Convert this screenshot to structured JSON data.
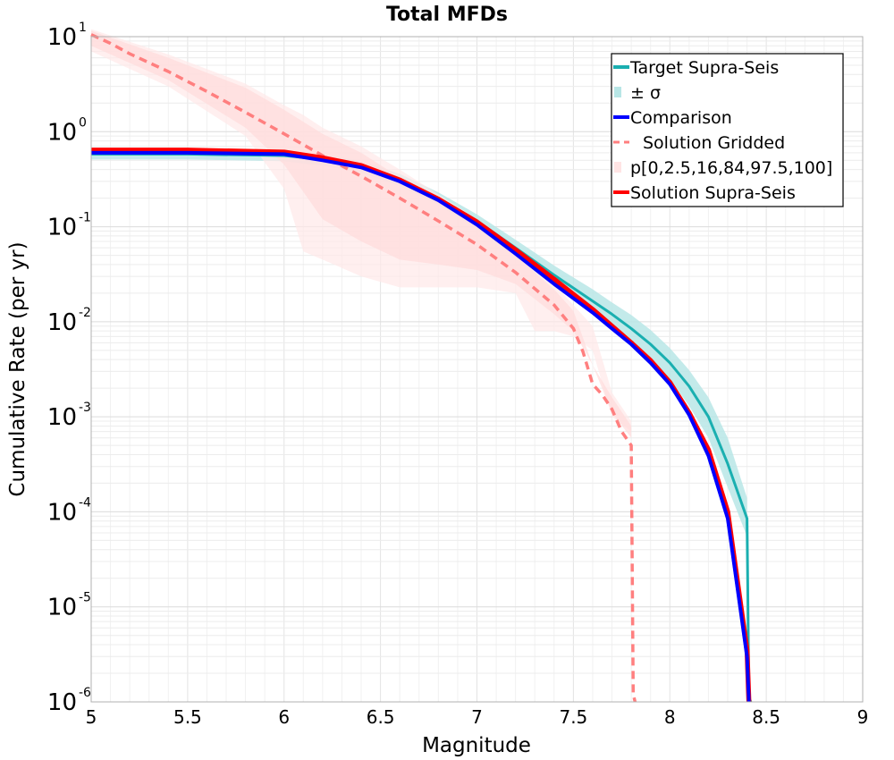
{
  "chart_data": {
    "type": "line",
    "title": "Total MFDs",
    "xlabel": "Magnitude",
    "ylabel": "Cumulative Rate (per yr)",
    "xlim": [
      5,
      9
    ],
    "ylim": [
      1e-06,
      10
    ],
    "yscale": "log",
    "grid": true,
    "legend_position": "top-right",
    "x_ticks": [
      "5",
      "5.5",
      "6",
      "6.5",
      "7",
      "7.5",
      "8",
      "8.5",
      "9"
    ],
    "y_ticks": [
      {
        "base": "10",
        "exp": "-6"
      },
      {
        "base": "10",
        "exp": "-5"
      },
      {
        "base": "10",
        "exp": "-4"
      },
      {
        "base": "10",
        "exp": "-3"
      },
      {
        "base": "10",
        "exp": "-2"
      },
      {
        "base": "10",
        "exp": "-1"
      },
      {
        "base": "10",
        "exp": "0"
      },
      {
        "base": "10",
        "exp": "1"
      }
    ],
    "legend": [
      {
        "label": "Target Supra-Seis",
        "color": "#1aafb0",
        "style": "line"
      },
      {
        "label": "± σ",
        "color": "#b8e6e6",
        "style": "band"
      },
      {
        "label": "Comparison",
        "color": "#0000ff",
        "style": "line"
      },
      {
        "label": "Solution Gridded",
        "color": "#ff7f7f",
        "style": "dashed"
      },
      {
        "label": "p[0,2.5,16,84,97.5,100]",
        "color": "#ffe4e4",
        "style": "band"
      },
      {
        "label": "Solution Supra-Seis",
        "color": "#ff0000",
        "style": "line"
      }
    ],
    "series": [
      {
        "name": "Target Supra-Seis",
        "color": "#1aafb0",
        "x": [
          5.0,
          5.5,
          6.0,
          6.2,
          6.4,
          6.6,
          6.8,
          7.0,
          7.2,
          7.4,
          7.6,
          7.7,
          7.8,
          7.9,
          8.0,
          8.1,
          8.2,
          8.3,
          8.4,
          8.41,
          8.42
        ],
        "y": [
          0.58,
          0.58,
          0.56,
          0.51,
          0.43,
          0.31,
          0.2,
          0.115,
          0.06,
          0.031,
          0.0165,
          0.012,
          0.0085,
          0.0058,
          0.0037,
          0.0021,
          0.001,
          0.00032,
          8.5e-05,
          1.1e-06,
          1e-06
        ]
      },
      {
        "name": "Comparison",
        "color": "#0000ff",
        "x": [
          5.0,
          5.5,
          6.0,
          6.2,
          6.4,
          6.6,
          6.8,
          7.0,
          7.2,
          7.4,
          7.6,
          7.7,
          7.8,
          7.9,
          8.0,
          8.1,
          8.2,
          8.3,
          8.4,
          8.41
        ],
        "y": [
          0.6,
          0.6,
          0.58,
          0.5,
          0.42,
          0.3,
          0.19,
          0.105,
          0.052,
          0.025,
          0.0125,
          0.0085,
          0.0058,
          0.0037,
          0.0022,
          0.00105,
          0.00039,
          8.5e-05,
          3e-06,
          1e-06
        ]
      },
      {
        "name": "Solution Gridded",
        "color": "#ff7f7f",
        "x": [
          5.0,
          5.1,
          5.2,
          5.4,
          5.6,
          5.8,
          6.0,
          6.2,
          6.4,
          6.6,
          6.8,
          7.0,
          7.2,
          7.4,
          7.5,
          7.55,
          7.6,
          7.65,
          7.7,
          7.75,
          7.8,
          7.81,
          7.82
        ],
        "y": [
          10.5,
          8.5,
          6.6,
          4.3,
          2.65,
          1.6,
          0.95,
          0.56,
          0.34,
          0.2,
          0.115,
          0.065,
          0.033,
          0.015,
          0.0085,
          0.0048,
          0.0022,
          0.0017,
          0.0012,
          0.0007,
          0.0005,
          1.2e-06,
          1e-06
        ]
      },
      {
        "name": "Solution Supra-Seis",
        "color": "#ff0000",
        "x": [
          5.0,
          5.5,
          6.0,
          6.2,
          6.4,
          6.6,
          6.8,
          7.0,
          7.2,
          7.4,
          7.6,
          7.7,
          7.8,
          7.9,
          8.0,
          8.1,
          8.2,
          8.3,
          8.4,
          8.41
        ],
        "y": [
          0.64,
          0.64,
          0.61,
          0.53,
          0.44,
          0.31,
          0.195,
          0.112,
          0.057,
          0.028,
          0.0135,
          0.009,
          0.006,
          0.0039,
          0.0023,
          0.0011,
          0.00045,
          0.0001,
          3.5e-06,
          1e-06
        ]
      }
    ],
    "bands": [
      {
        "name": "± σ",
        "color": "#b8e6e6",
        "x": [
          5.0,
          5.5,
          6.0,
          6.2,
          6.4,
          6.6,
          6.8,
          7.0,
          7.2,
          7.4,
          7.6,
          7.7,
          7.8,
          7.9,
          8.0,
          8.1,
          8.2,
          8.3,
          8.4
        ],
        "lower": [
          0.51,
          0.51,
          0.49,
          0.44,
          0.37,
          0.27,
          0.17,
          0.095,
          0.05,
          0.025,
          0.012,
          0.0085,
          0.006,
          0.004,
          0.0025,
          0.0013,
          0.0006,
          0.00018,
          5.5e-05
        ],
        "upper": [
          0.66,
          0.66,
          0.64,
          0.58,
          0.49,
          0.36,
          0.23,
          0.135,
          0.073,
          0.039,
          0.022,
          0.016,
          0.0118,
          0.0082,
          0.0053,
          0.0031,
          0.0016,
          0.0006,
          0.00014
        ]
      },
      {
        "name": "p 0-100",
        "color": "#ffe8e8",
        "x": [
          5.0,
          5.4,
          5.8,
          6.0,
          6.1,
          6.2,
          6.4,
          6.6,
          6.8,
          7.0,
          7.2,
          7.3,
          7.4,
          7.5,
          7.6,
          7.7,
          7.8
        ],
        "lower": [
          7.0,
          3.0,
          0.9,
          0.25,
          0.055,
          0.045,
          0.03,
          0.023,
          0.023,
          0.023,
          0.02,
          0.008,
          0.008,
          0.007,
          0.005,
          0.001,
          0.0007
        ],
        "upper": [
          12.0,
          6.5,
          3.2,
          1.9,
          1.5,
          1.1,
          0.7,
          0.4,
          0.22,
          0.12,
          0.06,
          0.04,
          0.025,
          0.015,
          0.009,
          0.0018,
          0.0009
        ]
      },
      {
        "name": "p 2.5-97.5",
        "color": "#ffdcdc",
        "x": [
          5.0,
          5.4,
          5.8,
          6.0,
          6.2,
          6.4,
          6.6,
          6.8,
          7.0,
          7.2,
          7.4,
          7.5,
          7.6,
          7.7,
          7.8
        ],
        "lower": [
          8.0,
          3.5,
          1.1,
          0.45,
          0.12,
          0.07,
          0.045,
          0.04,
          0.035,
          0.025,
          0.012,
          0.008,
          0.0035,
          0.0011,
          0.0006
        ],
        "upper": [
          11.5,
          6.0,
          2.9,
          1.7,
          0.95,
          0.6,
          0.33,
          0.19,
          0.1,
          0.05,
          0.022,
          0.013,
          0.0035,
          0.0016,
          0.0008
        ]
      }
    ]
  }
}
